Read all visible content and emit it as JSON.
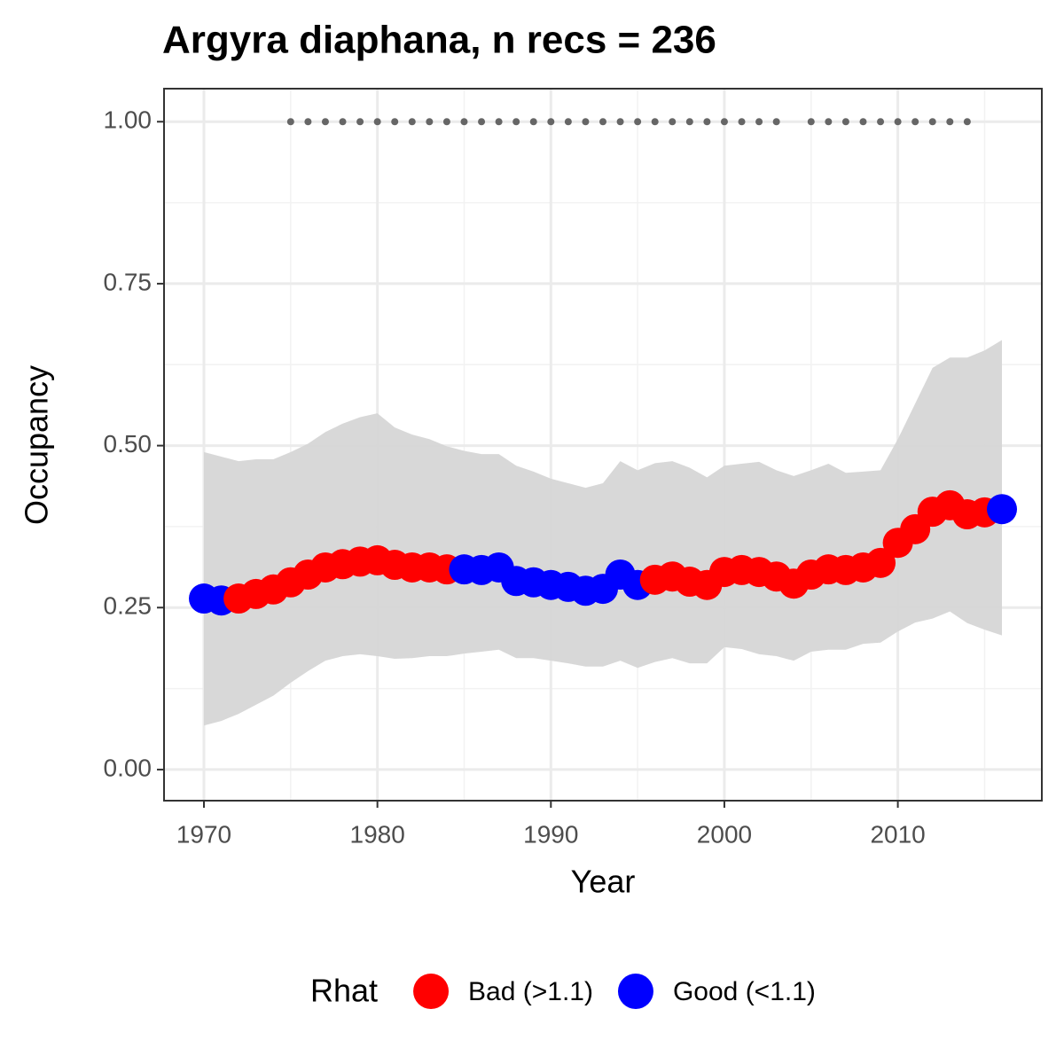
{
  "chart_data": {
    "type": "line",
    "title": "Argyra diaphana, n recs = 236",
    "x_label": "Year",
    "y_label": "Occupancy",
    "x": [
      1970,
      1971,
      1972,
      1973,
      1974,
      1975,
      1976,
      1977,
      1978,
      1979,
      1980,
      1981,
      1982,
      1983,
      1984,
      1985,
      1986,
      1987,
      1988,
      1989,
      1990,
      1991,
      1992,
      1993,
      1994,
      1995,
      1996,
      1997,
      1998,
      1999,
      2000,
      2001,
      2002,
      2003,
      2004,
      2005,
      2006,
      2007,
      2008,
      2009,
      2010,
      2011,
      2012,
      2013,
      2014,
      2015,
      2016
    ],
    "values": [
      0.264,
      0.261,
      0.264,
      0.271,
      0.278,
      0.289,
      0.301,
      0.312,
      0.317,
      0.321,
      0.323,
      0.316,
      0.312,
      0.312,
      0.309,
      0.309,
      0.308,
      0.312,
      0.291,
      0.289,
      0.285,
      0.282,
      0.276,
      0.279,
      0.301,
      0.285,
      0.293,
      0.298,
      0.29,
      0.285,
      0.305,
      0.308,
      0.305,
      0.298,
      0.287,
      0.301,
      0.309,
      0.308,
      0.312,
      0.319,
      0.35,
      0.371,
      0.398,
      0.408,
      0.394,
      0.397,
      0.402
    ],
    "upper": [
      0.49,
      0.483,
      0.476,
      0.479,
      0.479,
      0.49,
      0.503,
      0.521,
      0.534,
      0.544,
      0.55,
      0.528,
      0.517,
      0.51,
      0.499,
      0.492,
      0.487,
      0.487,
      0.469,
      0.46,
      0.449,
      0.442,
      0.435,
      0.442,
      0.476,
      0.462,
      0.473,
      0.476,
      0.466,
      0.451,
      0.469,
      0.472,
      0.475,
      0.462,
      0.453,
      0.462,
      0.472,
      0.458,
      0.46,
      0.462,
      0.51,
      0.565,
      0.62,
      0.636,
      0.636,
      0.647,
      0.663
    ],
    "lower": [
      0.068,
      0.075,
      0.086,
      0.1,
      0.114,
      0.134,
      0.152,
      0.168,
      0.175,
      0.178,
      0.175,
      0.171,
      0.172,
      0.175,
      0.175,
      0.179,
      0.182,
      0.185,
      0.172,
      0.172,
      0.168,
      0.164,
      0.159,
      0.159,
      0.168,
      0.157,
      0.166,
      0.172,
      0.164,
      0.164,
      0.189,
      0.186,
      0.178,
      0.175,
      0.168,
      0.182,
      0.185,
      0.185,
      0.194,
      0.196,
      0.213,
      0.227,
      0.233,
      0.244,
      0.226,
      0.216,
      0.207
    ],
    "rhat": [
      "Good (<1.1)",
      "Good (<1.1)",
      "Bad (>1.1)",
      "Bad (>1.1)",
      "Bad (>1.1)",
      "Bad (>1.1)",
      "Bad (>1.1)",
      "Bad (>1.1)",
      "Bad (>1.1)",
      "Bad (>1.1)",
      "Bad (>1.1)",
      "Bad (>1.1)",
      "Bad (>1.1)",
      "Bad (>1.1)",
      "Bad (>1.1)",
      "Good (<1.1)",
      "Good (<1.1)",
      "Good (<1.1)",
      "Good (<1.1)",
      "Good (<1.1)",
      "Good (<1.1)",
      "Good (<1.1)",
      "Good (<1.1)",
      "Good (<1.1)",
      "Good (<1.1)",
      "Good (<1.1)",
      "Bad (>1.1)",
      "Bad (>1.1)",
      "Bad (>1.1)",
      "Bad (>1.1)",
      "Bad (>1.1)",
      "Bad (>1.1)",
      "Bad (>1.1)",
      "Bad (>1.1)",
      "Bad (>1.1)",
      "Bad (>1.1)",
      "Bad (>1.1)",
      "Bad (>1.1)",
      "Bad (>1.1)",
      "Bad (>1.1)",
      "Bad (>1.1)",
      "Bad (>1.1)",
      "Bad (>1.1)",
      "Bad (>1.1)",
      "Bad (>1.1)",
      "Bad (>1.1)",
      "Good (<1.1)"
    ],
    "band_color": "#d6d6d6",
    "records": {
      "color": "#666666",
      "x": [
        1975,
        1976,
        1977,
        1978,
        1979,
        1980,
        1981,
        1982,
        1983,
        1984,
        1985,
        1986,
        1987,
        1988,
        1989,
        1990,
        1991,
        1992,
        1993,
        1994,
        1995,
        1996,
        1997,
        1998,
        1999,
        2000,
        2001,
        2002,
        2003,
        2005,
        2006,
        2007,
        2008,
        2009,
        2010,
        2011,
        2012,
        2013,
        2014
      ],
      "values": [
        1,
        1,
        1,
        1,
        1,
        1,
        1,
        1,
        1,
        1,
        1,
        1,
        1,
        1,
        1,
        1,
        1,
        1,
        1,
        1,
        1,
        1,
        1,
        1,
        1,
        1,
        1,
        1,
        1,
        1,
        1,
        1,
        1,
        1,
        1,
        1,
        1,
        1,
        1
      ]
    },
    "legend": {
      "title": "Rhat",
      "position": "bottom",
      "entries": [
        {
          "name": "Bad (>1.1)",
          "color": "#ff0000"
        },
        {
          "name": "Good (<1.1)",
          "color": "#0000ff"
        }
      ]
    },
    "xlim": [
      1967.7,
      2018.3
    ],
    "ylim": [
      -0.048,
      1.051
    ],
    "xticks": [
      1970,
      1980,
      1990,
      2000,
      2010
    ],
    "yticks": [
      {
        "value": 0,
        "label": "0.00"
      },
      {
        "value": 0.25,
        "label": "0.25"
      },
      {
        "value": 0.5,
        "label": "0.50"
      },
      {
        "value": 0.75,
        "label": "0.75"
      },
      {
        "value": 1,
        "label": "1.00"
      }
    ],
    "grid": true
  }
}
